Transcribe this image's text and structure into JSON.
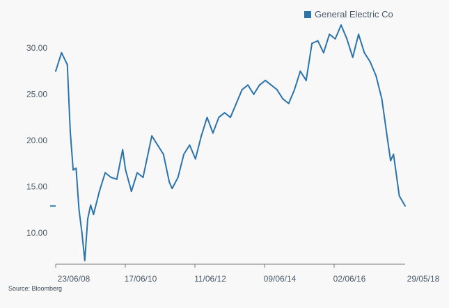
{
  "chart_data": {
    "type": "line",
    "title": "",
    "xlabel": "",
    "ylabel": "",
    "ylim": [
      6.6,
      33.1
    ],
    "y_ticks": [
      10.0,
      15.0,
      20.0,
      25.0,
      30.0
    ],
    "y_tick_labels": [
      "10.00",
      "15.00",
      "20.00",
      "25.00",
      "30.00"
    ],
    "x_ticks": [
      "23/06/08",
      "17/06/10",
      "11/06/12",
      "09/06/14",
      "02/06/16",
      "29/05/18"
    ],
    "x_range": [
      "2008-05-29",
      "2018-05-29"
    ],
    "legend_position": "top-right",
    "current_value_marker": 12.9,
    "series": [
      {
        "name": "General Electric Co",
        "color": "#2a73ab",
        "x": [
          "2008-05",
          "2008-07",
          "2008-09",
          "2008-10",
          "2008-11",
          "2008-12",
          "2009-01",
          "2009-02",
          "2009-03",
          "2009-04",
          "2009-05",
          "2009-06",
          "2009-08",
          "2009-10",
          "2009-12",
          "2010-02",
          "2010-04",
          "2010-05",
          "2010-07",
          "2010-09",
          "2010-11",
          "2011-02",
          "2011-04",
          "2011-06",
          "2011-08",
          "2011-09",
          "2011-11",
          "2012-01",
          "2012-03",
          "2012-05",
          "2012-07",
          "2012-09",
          "2012-11",
          "2013-01",
          "2013-03",
          "2013-05",
          "2013-07",
          "2013-09",
          "2013-11",
          "2014-01",
          "2014-03",
          "2014-05",
          "2014-07",
          "2014-09",
          "2014-11",
          "2015-01",
          "2015-03",
          "2015-05",
          "2015-07",
          "2015-09",
          "2015-11",
          "2016-01",
          "2016-03",
          "2016-05",
          "2016-07",
          "2016-09",
          "2016-11",
          "2017-01",
          "2017-03",
          "2017-05",
          "2017-07",
          "2017-09",
          "2017-11",
          "2017-12",
          "2018-01",
          "2018-03",
          "2018-05"
        ],
        "values": [
          27.5,
          29.5,
          28.2,
          21.0,
          16.8,
          17.0,
          12.5,
          10.0,
          7.0,
          11.5,
          13.0,
          12.0,
          14.5,
          16.5,
          16.0,
          15.8,
          19.0,
          16.8,
          14.5,
          16.5,
          16.0,
          20.5,
          19.5,
          18.5,
          15.5,
          14.8,
          16.0,
          18.5,
          19.5,
          18.0,
          20.5,
          22.5,
          20.8,
          22.5,
          23.0,
          22.5,
          24.0,
          25.5,
          26.0,
          25.0,
          26.0,
          26.5,
          26.0,
          25.5,
          24.5,
          24.0,
          25.5,
          27.5,
          26.5,
          30.5,
          30.8,
          29.5,
          31.5,
          31.0,
          32.5,
          31.0,
          29.0,
          31.5,
          29.5,
          28.5,
          27.0,
          24.5,
          20.0,
          17.8,
          18.5,
          14.0,
          12.9
        ]
      }
    ]
  },
  "legend": {
    "label": "General Electric Co"
  },
  "source": "Source: Bloomberg"
}
